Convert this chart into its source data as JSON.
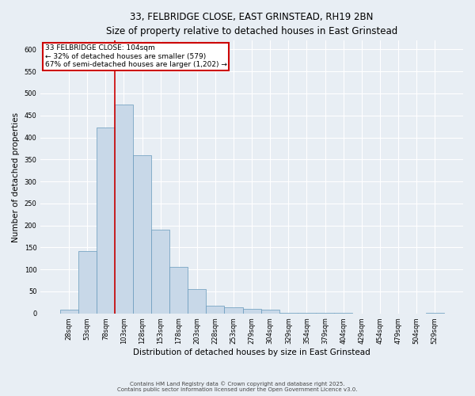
{
  "title_line1": "33, FELBRIDGE CLOSE, EAST GRINSTEAD, RH19 2BN",
  "title_line2": "Size of property relative to detached houses in East Grinstead",
  "xlabel": "Distribution of detached houses by size in East Grinstead",
  "ylabel": "Number of detached properties",
  "categories": [
    "28sqm",
    "53sqm",
    "78sqm",
    "103sqm",
    "128sqm",
    "153sqm",
    "178sqm",
    "203sqm",
    "228sqm",
    "253sqm",
    "279sqm",
    "304sqm",
    "329sqm",
    "354sqm",
    "379sqm",
    "404sqm",
    "429sqm",
    "454sqm",
    "479sqm",
    "504sqm",
    "529sqm"
  ],
  "values": [
    8,
    142,
    423,
    475,
    360,
    190,
    105,
    55,
    17,
    14,
    11,
    9,
    2,
    2,
    1,
    1,
    0,
    0,
    0,
    0,
    1
  ],
  "bar_color": "#c8d8e8",
  "bar_edge_color": "#6699bb",
  "annotation_text_line1": "33 FELBRIDGE CLOSE: 104sqm",
  "annotation_text_line2": "← 32% of detached houses are smaller (579)",
  "annotation_text_line3": "67% of semi-detached houses are larger (1,202) →",
  "annotation_box_color": "#ffffff",
  "annotation_box_edge": "#cc0000",
  "vline_color": "#cc0000",
  "vline_x_index": 3,
  "ylim": [
    0,
    620
  ],
  "background_color": "#e8eef4",
  "grid_color": "#ffffff",
  "footer_line1": "Contains HM Land Registry data © Crown copyright and database right 2025.",
  "footer_line2": "Contains public sector information licensed under the Open Government Licence v3.0."
}
